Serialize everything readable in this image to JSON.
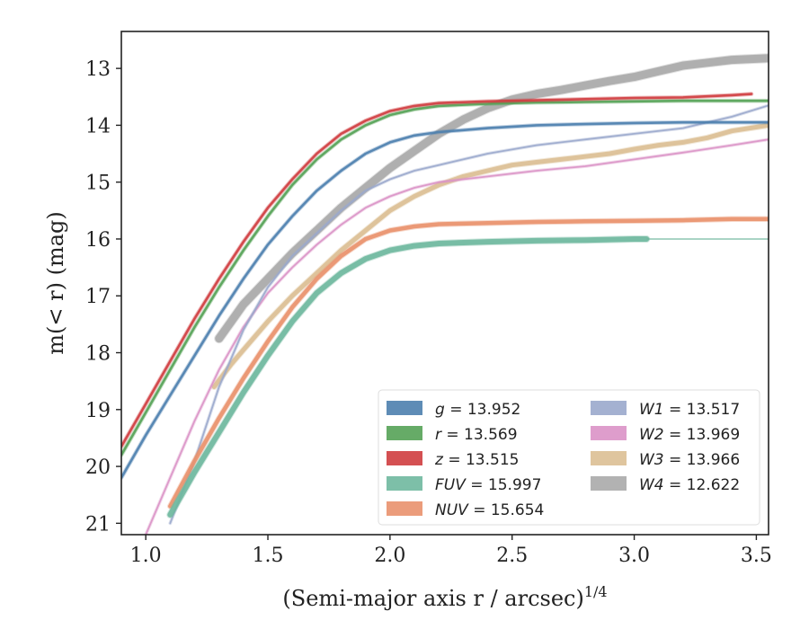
{
  "chart_data": {
    "type": "line",
    "xlabel": "(Semi-major axis r / arcsec)",
    "xlabel_exponent": "1/4",
    "ylabel": "m(< r) (mag)",
    "xlim": [
      0.9,
      3.55
    ],
    "ylim": [
      21.2,
      12.35
    ],
    "y_inverted": true,
    "x_ticks": [
      "1.0",
      "1.5",
      "2.0",
      "2.5",
      "3.0",
      "3.5"
    ],
    "y_ticks": [
      "13",
      "14",
      "15",
      "16",
      "17",
      "18",
      "19",
      "20",
      "21"
    ],
    "legend_position": "lower-right",
    "legend": [
      {
        "band": "g",
        "value": "= 13.952",
        "color": "#4c7fae"
      },
      {
        "band": "r",
        "value": "= 13.569",
        "color": "#55a257"
      },
      {
        "band": "z",
        "value": "= 13.515",
        "color": "#cf3d3f"
      },
      {
        "band": "FUV",
        "value": "= 15.997",
        "color": "#6fb89f"
      },
      {
        "band": "NUV",
        "value": "= 15.654",
        "color": "#e9916d"
      },
      {
        "band": "W1",
        "value": "= 13.517",
        "color": "#9aa9cc"
      },
      {
        "band": "W2",
        "value": "= 13.969",
        "color": "#da92c6"
      },
      {
        "band": "W3",
        "value": "= 13.966",
        "color": "#dbbf94"
      },
      {
        "band": "W4",
        "value": "= 12.622",
        "color": "#aaaaaa"
      }
    ],
    "series": [
      {
        "band": "g",
        "color": "#4c7fae",
        "x": [
          0.9,
          1.0,
          1.1,
          1.2,
          1.3,
          1.4,
          1.5,
          1.6,
          1.7,
          1.8,
          1.9,
          2.0,
          2.1,
          2.2,
          2.4,
          2.6,
          2.8,
          3.0,
          3.2,
          3.4,
          3.55
        ],
        "y": [
          20.2,
          19.45,
          18.75,
          18.05,
          17.35,
          16.7,
          16.1,
          15.6,
          15.15,
          14.8,
          14.5,
          14.3,
          14.18,
          14.12,
          14.05,
          14.0,
          13.98,
          13.96,
          13.95,
          13.95,
          13.95
        ]
      },
      {
        "band": "r",
        "color": "#55a257",
        "x": [
          0.9,
          1.0,
          1.1,
          1.2,
          1.3,
          1.4,
          1.5,
          1.6,
          1.7,
          1.8,
          1.9,
          2.0,
          2.1,
          2.2,
          2.4,
          2.6,
          2.8,
          3.0,
          3.2,
          3.4,
          3.55
        ],
        "y": [
          19.8,
          19.05,
          18.3,
          17.55,
          16.85,
          16.2,
          15.6,
          15.05,
          14.6,
          14.25,
          14.0,
          13.82,
          13.72,
          13.66,
          13.62,
          13.6,
          13.59,
          13.58,
          13.57,
          13.57,
          13.57
        ]
      },
      {
        "band": "z",
        "color": "#cf3d3f",
        "x": [
          0.9,
          1.0,
          1.1,
          1.2,
          1.3,
          1.4,
          1.5,
          1.6,
          1.7,
          1.8,
          1.9,
          2.0,
          2.1,
          2.2,
          2.4,
          2.6,
          2.8,
          3.0,
          3.2,
          3.4,
          3.48
        ],
        "y": [
          19.65,
          18.9,
          18.15,
          17.4,
          16.7,
          16.05,
          15.45,
          14.95,
          14.5,
          14.15,
          13.92,
          13.75,
          13.66,
          13.61,
          13.58,
          13.56,
          13.54,
          13.52,
          13.51,
          13.47,
          13.45
        ]
      },
      {
        "band": "FUV",
        "color": "#6fb89f",
        "x": [
          1.1,
          1.2,
          1.3,
          1.4,
          1.5,
          1.6,
          1.7,
          1.8,
          1.9,
          2.0,
          2.1,
          2.2,
          2.4,
          2.6,
          2.8,
          3.0,
          3.05
        ],
        "y": [
          20.85,
          20.1,
          19.4,
          18.7,
          18.05,
          17.45,
          16.95,
          16.6,
          16.35,
          16.2,
          16.12,
          16.08,
          16.05,
          16.03,
          16.02,
          16.0,
          16.0
        ],
        "extension": {
          "x": [
            3.05,
            3.55
          ],
          "y": [
            16.0,
            16.0
          ]
        }
      },
      {
        "band": "NUV",
        "color": "#e9916d",
        "x": [
          1.1,
          1.2,
          1.3,
          1.4,
          1.5,
          1.6,
          1.7,
          1.8,
          1.9,
          2.0,
          2.1,
          2.2,
          2.4,
          2.6,
          2.8,
          3.0,
          3.2,
          3.4,
          3.55
        ],
        "y": [
          20.7,
          19.9,
          19.15,
          18.45,
          17.8,
          17.2,
          16.7,
          16.3,
          16.0,
          15.85,
          15.78,
          15.74,
          15.72,
          15.7,
          15.69,
          15.68,
          15.67,
          15.65,
          15.65
        ]
      },
      {
        "band": "W1",
        "color": "#9aa9cc",
        "x": [
          1.1,
          1.2,
          1.3,
          1.4,
          1.5,
          1.6,
          1.7,
          1.8,
          1.9,
          2.0,
          2.1,
          2.2,
          2.4,
          2.6,
          2.8,
          3.0,
          3.2,
          3.4,
          3.55
        ],
        "y": [
          21.0,
          19.9,
          18.6,
          17.6,
          16.85,
          16.3,
          15.9,
          15.5,
          15.15,
          14.95,
          14.8,
          14.7,
          14.5,
          14.35,
          14.25,
          14.15,
          14.05,
          13.85,
          13.65
        ]
      },
      {
        "band": "W2",
        "color": "#da92c6",
        "x": [
          1.0,
          1.1,
          1.2,
          1.3,
          1.4,
          1.5,
          1.6,
          1.7,
          1.8,
          1.9,
          2.0,
          2.1,
          2.2,
          2.4,
          2.6,
          2.8,
          3.0,
          3.2,
          3.4,
          3.55
        ],
        "y": [
          21.2,
          20.2,
          19.2,
          18.3,
          17.55,
          16.95,
          16.5,
          16.1,
          15.75,
          15.45,
          15.25,
          15.1,
          15.0,
          14.9,
          14.8,
          14.72,
          14.6,
          14.48,
          14.35,
          14.25
        ]
      },
      {
        "band": "W3",
        "color": "#dbbf94",
        "x": [
          1.28,
          1.35,
          1.4,
          1.5,
          1.6,
          1.7,
          1.8,
          1.9,
          2.0,
          2.1,
          2.2,
          2.3,
          2.4,
          2.5,
          2.6,
          2.7,
          2.8,
          2.9,
          3.0,
          3.1,
          3.2,
          3.3,
          3.4,
          3.55
        ],
        "y": [
          18.6,
          18.2,
          17.95,
          17.45,
          17.0,
          16.6,
          16.2,
          15.85,
          15.5,
          15.25,
          15.05,
          14.9,
          14.8,
          14.7,
          14.65,
          14.6,
          14.55,
          14.5,
          14.42,
          14.35,
          14.3,
          14.22,
          14.1,
          14.0
        ]
      },
      {
        "band": "W4",
        "color": "#aaaaaa",
        "x": [
          1.3,
          1.35,
          1.4,
          1.5,
          1.6,
          1.7,
          1.8,
          1.9,
          2.0,
          2.1,
          2.2,
          2.3,
          2.4,
          2.5,
          2.6,
          2.7,
          2.8,
          2.9,
          3.0,
          3.1,
          3.2,
          3.3,
          3.4,
          3.55
        ],
        "y": [
          17.75,
          17.45,
          17.15,
          16.7,
          16.25,
          15.85,
          15.45,
          15.1,
          14.75,
          14.45,
          14.15,
          13.9,
          13.7,
          13.55,
          13.45,
          13.38,
          13.3,
          13.22,
          13.15,
          13.05,
          12.95,
          12.9,
          12.85,
          12.82
        ]
      }
    ]
  }
}
